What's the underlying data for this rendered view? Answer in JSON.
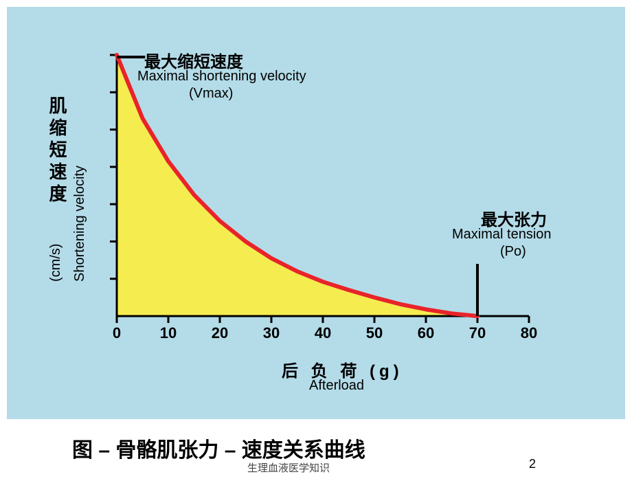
{
  "chart": {
    "type": "line",
    "background_color": "#b4dbe8",
    "fill_color": "#f5ec4f",
    "line_color": "#e8242a",
    "line_width": 6,
    "axis_color": "#000000",
    "axis_width": 3,
    "tick_color": "#000000",
    "xlim": [
      0,
      80
    ],
    "ylim": [
      0,
      7
    ],
    "xticks": [
      0,
      10,
      20,
      30,
      40,
      50,
      60,
      70,
      80
    ],
    "xtick_labels": [
      "0",
      "10",
      "20",
      "30",
      "40",
      "50",
      "60",
      "70",
      "80"
    ],
    "ytick_count": 7,
    "curve_points": [
      {
        "x": 0,
        "y": 7.0
      },
      {
        "x": 5,
        "y": 5.3
      },
      {
        "x": 10,
        "y": 4.15
      },
      {
        "x": 15,
        "y": 3.25
      },
      {
        "x": 20,
        "y": 2.55
      },
      {
        "x": 25,
        "y": 2.0
      },
      {
        "x": 30,
        "y": 1.55
      },
      {
        "x": 35,
        "y": 1.2
      },
      {
        "x": 40,
        "y": 0.92
      },
      {
        "x": 45,
        "y": 0.7
      },
      {
        "x": 50,
        "y": 0.5
      },
      {
        "x": 55,
        "y": 0.32
      },
      {
        "x": 60,
        "y": 0.18
      },
      {
        "x": 65,
        "y": 0.07
      },
      {
        "x": 70,
        "y": 0.0
      }
    ],
    "po_x": 70,
    "y_label_cn": "肌缩短速度",
    "y_label_en": "Shortening velocity",
    "y_label_unit": "(cm/s)",
    "x_label_cn": "后 负 荷 (g)",
    "x_label_en": "Afterload",
    "annotation_vmax_cn": "最大缩短速度",
    "annotation_vmax_en1": "Maximal shortening velocity",
    "annotation_vmax_en2": "(Vmax)",
    "annotation_po_cn": "最大张力",
    "annotation_po_en1": "Maximal tension",
    "annotation_po_en2": "(Po)",
    "xtick_fontsize": 22,
    "label_fontsize_cn": 26,
    "label_fontsize_en": 20
  },
  "caption": "图 – 骨骼肌张力 – 速度关系曲线",
  "footer": "生理血液医学知识",
  "page": "2"
}
